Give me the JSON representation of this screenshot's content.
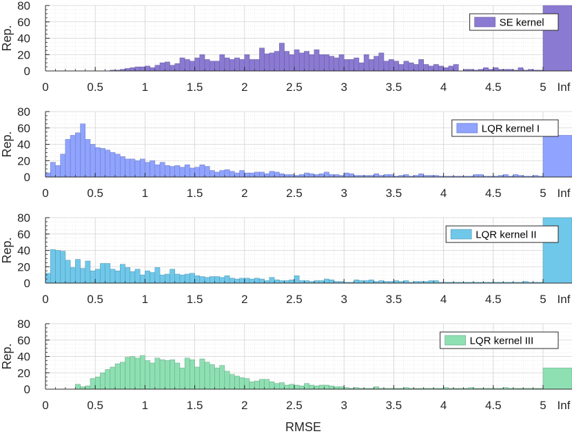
{
  "chart_data": {
    "type": "bar",
    "xlabel": "RMSE",
    "ylabel": "Rep.",
    "ylim": [
      0,
      80
    ],
    "y_ticks": [
      0,
      20,
      40,
      60,
      80
    ],
    "x_ticks": [
      0,
      0.5,
      1,
      1.5,
      2,
      2.5,
      3,
      3.5,
      4,
      4.5,
      5
    ],
    "x_tick_labels": [
      "0",
      "0.5",
      "1",
      "1.5",
      "2",
      "2.5",
      "3",
      "3.5",
      "4",
      "4.5",
      "5",
      "Inf"
    ],
    "bin_width": 0.05,
    "bin_start": 0,
    "inf_label": "Inf",
    "grid": true,
    "legend_position": "top-right",
    "panels": [
      {
        "name": "SE kernel",
        "color": "#8b7ad2",
        "values": [
          0,
          0,
          0,
          0,
          0,
          0,
          0,
          0,
          0,
          0,
          0,
          0,
          0,
          1,
          1,
          2,
          3,
          4,
          5,
          5,
          6,
          4,
          7,
          10,
          11,
          7,
          9,
          16,
          14,
          12,
          16,
          20,
          14,
          12,
          12,
          20,
          16,
          14,
          16,
          14,
          20,
          14,
          14,
          28,
          21,
          22,
          24,
          34,
          24,
          20,
          26,
          22,
          24,
          20,
          26,
          20,
          20,
          18,
          16,
          20,
          14,
          14,
          16,
          10,
          20,
          14,
          18,
          22,
          12,
          14,
          12,
          8,
          12,
          10,
          8,
          14,
          8,
          6,
          8,
          6,
          4,
          6,
          8,
          0,
          2,
          2,
          1,
          2,
          4,
          2,
          4,
          2,
          2,
          2,
          1,
          4,
          1,
          2,
          1,
          1
        ],
        "inf_value": 80
      },
      {
        "name": "LQR kernel I",
        "color": "#8fa3ff",
        "values": [
          5,
          18,
          14,
          28,
          46,
          51,
          54,
          65,
          46,
          40,
          36,
          35,
          33,
          30,
          28,
          25,
          22,
          22,
          20,
          22,
          18,
          20,
          15,
          18,
          14,
          13,
          14,
          12,
          15,
          11,
          12,
          15,
          13,
          8,
          6,
          8,
          9,
          7,
          5,
          8,
          5,
          5,
          6,
          6,
          4,
          7,
          6,
          4,
          3,
          3,
          2,
          3,
          5,
          4,
          3,
          4,
          6,
          3,
          3,
          2,
          5,
          4,
          2,
          2,
          2,
          2,
          4,
          2,
          3,
          3,
          1,
          2,
          3,
          1,
          2,
          4,
          2,
          2,
          2,
          1,
          1,
          1,
          1,
          1,
          1,
          1,
          3,
          3,
          1,
          1,
          1,
          2,
          3,
          1,
          3,
          2,
          1,
          1,
          2,
          1
        ],
        "inf_value": 51
      },
      {
        "name": "LQR kernel II",
        "color": "#6fc8ea",
        "values": [
          12,
          41,
          40,
          39,
          28,
          19,
          29,
          18,
          27,
          15,
          17,
          24,
          24,
          17,
          15,
          23,
          19,
          14,
          17,
          10,
          15,
          13,
          19,
          10,
          11,
          17,
          11,
          10,
          11,
          12,
          9,
          8,
          7,
          8,
          8,
          7,
          9,
          6,
          5,
          6,
          6,
          5,
          6,
          5,
          3,
          7,
          4,
          3,
          3,
          4,
          9,
          3,
          3,
          2,
          3,
          3,
          5,
          4,
          2,
          2,
          1,
          1,
          4,
          3,
          3,
          4,
          2,
          3,
          2,
          2,
          3,
          2,
          3,
          1,
          2,
          2,
          2,
          3,
          3,
          1,
          1,
          1,
          1,
          1,
          1,
          1,
          1,
          1,
          1,
          1,
          1,
          1,
          1,
          1,
          1,
          1,
          2,
          1,
          1,
          1
        ],
        "inf_value": 80
      },
      {
        "name": "LQR kernel III",
        "color": "#8ee0b3",
        "values": [
          0,
          0,
          0,
          0,
          0,
          0,
          6,
          3,
          4,
          13,
          15,
          20,
          24,
          27,
          31,
          33,
          39,
          40,
          38,
          41,
          35,
          32,
          38,
          36,
          35,
          36,
          32,
          26,
          38,
          36,
          27,
          37,
          33,
          30,
          26,
          29,
          22,
          18,
          16,
          14,
          13,
          9,
          10,
          12,
          12,
          9,
          7,
          8,
          5,
          6,
          5,
          4,
          7,
          5,
          4,
          5,
          5,
          4,
          3,
          3,
          2,
          1,
          2,
          1,
          1,
          1,
          3,
          1,
          1,
          1,
          1,
          1,
          2,
          1,
          1,
          1,
          1,
          1,
          1,
          1,
          2,
          1,
          1,
          1,
          1,
          2,
          1,
          1,
          1,
          1,
          1,
          1,
          2,
          1,
          1,
          1,
          1,
          1,
          1,
          1
        ],
        "inf_value": 26
      }
    ]
  }
}
